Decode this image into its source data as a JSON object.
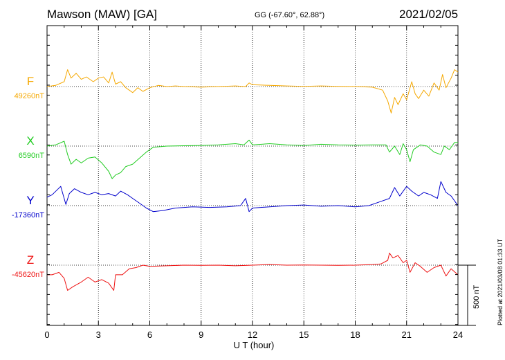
{
  "header": {
    "station": "Mawson (MAW)  [GA]",
    "coords": "GG (-67.60°,  62.88°)",
    "date": "2021/02/05"
  },
  "footer": {
    "xlabel": "U T (hour)",
    "plotted": "Plotted at 2021/03/08 01:33 UT",
    "scale_label": "500 nT"
  },
  "chart_data": {
    "type": "line",
    "x_ticks": [
      0,
      3,
      6,
      9,
      12,
      15,
      18,
      21,
      24
    ],
    "xlim": [
      0,
      24
    ],
    "scale_bar_nT": 500,
    "series": [
      {
        "name": "F",
        "baseline_label": "49260nT",
        "baseline": 49260,
        "color": "#f5a800",
        "points": [
          [
            0,
            49260
          ],
          [
            0.5,
            49270
          ],
          [
            1.0,
            49300
          ],
          [
            1.2,
            49400
          ],
          [
            1.4,
            49330
          ],
          [
            1.7,
            49370
          ],
          [
            2.0,
            49320
          ],
          [
            2.3,
            49340
          ],
          [
            2.7,
            49300
          ],
          [
            3.0,
            49330
          ],
          [
            3.3,
            49340
          ],
          [
            3.6,
            49290
          ],
          [
            3.8,
            49380
          ],
          [
            4.0,
            49280
          ],
          [
            4.3,
            49300
          ],
          [
            4.6,
            49250
          ],
          [
            5.0,
            49210
          ],
          [
            5.3,
            49250
          ],
          [
            5.6,
            49220
          ],
          [
            6.0,
            49250
          ],
          [
            6.5,
            49270
          ],
          [
            7.0,
            49260
          ],
          [
            7.5,
            49265
          ],
          [
            8.0,
            49260
          ],
          [
            9.0,
            49255
          ],
          [
            10.0,
            49260
          ],
          [
            11.0,
            49265
          ],
          [
            11.6,
            49260
          ],
          [
            11.8,
            49290
          ],
          [
            12.0,
            49275
          ],
          [
            13.0,
            49270
          ],
          [
            14.0,
            49265
          ],
          [
            15.0,
            49262
          ],
          [
            16.0,
            49265
          ],
          [
            17.0,
            49262
          ],
          [
            18.0,
            49260
          ],
          [
            19.0,
            49255
          ],
          [
            19.6,
            49230
          ],
          [
            19.9,
            49140
          ],
          [
            20.1,
            49040
          ],
          [
            20.3,
            49170
          ],
          [
            20.5,
            49110
          ],
          [
            20.8,
            49200
          ],
          [
            21.0,
            49150
          ],
          [
            21.3,
            49300
          ],
          [
            21.5,
            49200
          ],
          [
            21.7,
            49160
          ],
          [
            22.0,
            49230
          ],
          [
            22.3,
            49180
          ],
          [
            22.6,
            49290
          ],
          [
            22.9,
            49230
          ],
          [
            23.1,
            49360
          ],
          [
            23.3,
            49250
          ],
          [
            23.6,
            49330
          ],
          [
            23.8,
            49400
          ],
          [
            24.0,
            49380
          ]
        ]
      },
      {
        "name": "X",
        "baseline_label": "6590nT",
        "baseline": 6590,
        "color": "#22cc22",
        "points": [
          [
            0,
            6590
          ],
          [
            0.5,
            6600
          ],
          [
            1.0,
            6630
          ],
          [
            1.2,
            6520
          ],
          [
            1.4,
            6440
          ],
          [
            1.7,
            6480
          ],
          [
            2.0,
            6450
          ],
          [
            2.4,
            6490
          ],
          [
            2.8,
            6500
          ],
          [
            3.2,
            6450
          ],
          [
            3.6,
            6380
          ],
          [
            3.8,
            6320
          ],
          [
            4.0,
            6350
          ],
          [
            4.3,
            6370
          ],
          [
            4.6,
            6420
          ],
          [
            5.0,
            6440
          ],
          [
            5.4,
            6490
          ],
          [
            5.8,
            6540
          ],
          [
            6.2,
            6580
          ],
          [
            6.6,
            6585
          ],
          [
            7.0,
            6590
          ],
          [
            8.0,
            6593
          ],
          [
            9.0,
            6595
          ],
          [
            10.0,
            6600
          ],
          [
            11.0,
            6610
          ],
          [
            11.5,
            6600
          ],
          [
            11.8,
            6640
          ],
          [
            12.0,
            6600
          ],
          [
            13.0,
            6610
          ],
          [
            14.0,
            6600
          ],
          [
            15.0,
            6595
          ],
          [
            16.0,
            6605
          ],
          [
            17.0,
            6600
          ],
          [
            18.0,
            6598
          ],
          [
            19.0,
            6600
          ],
          [
            19.8,
            6600
          ],
          [
            20.0,
            6540
          ],
          [
            20.3,
            6590
          ],
          [
            20.6,
            6520
          ],
          [
            20.8,
            6610
          ],
          [
            21.0,
            6560
          ],
          [
            21.2,
            6460
          ],
          [
            21.4,
            6560
          ],
          [
            21.8,
            6600
          ],
          [
            22.2,
            6590
          ],
          [
            22.6,
            6540
          ],
          [
            23.0,
            6520
          ],
          [
            23.2,
            6590
          ],
          [
            23.5,
            6560
          ],
          [
            23.8,
            6620
          ],
          [
            24.0,
            6620
          ]
        ]
      },
      {
        "name": "Y",
        "baseline_label": "-17360nT",
        "baseline": -17360,
        "color": "#0000cc",
        "points": [
          [
            0,
            -17290
          ],
          [
            0.3,
            -17270
          ],
          [
            0.8,
            -17200
          ],
          [
            1.1,
            -17350
          ],
          [
            1.3,
            -17260
          ],
          [
            1.6,
            -17220
          ],
          [
            2.0,
            -17250
          ],
          [
            2.4,
            -17270
          ],
          [
            2.8,
            -17250
          ],
          [
            3.2,
            -17270
          ],
          [
            3.6,
            -17260
          ],
          [
            4.0,
            -17280
          ],
          [
            4.3,
            -17240
          ],
          [
            4.7,
            -17270
          ],
          [
            5.0,
            -17300
          ],
          [
            5.4,
            -17340
          ],
          [
            5.8,
            -17380
          ],
          [
            6.2,
            -17410
          ],
          [
            6.8,
            -17400
          ],
          [
            7.5,
            -17380
          ],
          [
            8.5,
            -17370
          ],
          [
            9.5,
            -17375
          ],
          [
            10.5,
            -17370
          ],
          [
            11.3,
            -17360
          ],
          [
            11.6,
            -17300
          ],
          [
            11.8,
            -17410
          ],
          [
            12.0,
            -17380
          ],
          [
            13.0,
            -17370
          ],
          [
            14.0,
            -17360
          ],
          [
            15.0,
            -17355
          ],
          [
            16.0,
            -17365
          ],
          [
            17.0,
            -17360
          ],
          [
            18.0,
            -17370
          ],
          [
            18.8,
            -17360
          ],
          [
            19.4,
            -17330
          ],
          [
            20.0,
            -17300
          ],
          [
            20.3,
            -17210
          ],
          [
            20.6,
            -17280
          ],
          [
            21.0,
            -17200
          ],
          [
            21.3,
            -17240
          ],
          [
            21.7,
            -17280
          ],
          [
            22.0,
            -17250
          ],
          [
            22.4,
            -17270
          ],
          [
            22.8,
            -17300
          ],
          [
            23.0,
            -17160
          ],
          [
            23.3,
            -17250
          ],
          [
            23.6,
            -17280
          ],
          [
            24.0,
            -17360
          ]
        ]
      },
      {
        "name": "Z",
        "baseline_label": "-45620nT",
        "baseline": -45620,
        "color": "#ee1111",
        "points": [
          [
            0,
            -45700
          ],
          [
            0.3,
            -45700
          ],
          [
            0.7,
            -45680
          ],
          [
            1.0,
            -45730
          ],
          [
            1.2,
            -45830
          ],
          [
            1.5,
            -45800
          ],
          [
            2.0,
            -45760
          ],
          [
            2.4,
            -45720
          ],
          [
            2.8,
            -45760
          ],
          [
            3.2,
            -45740
          ],
          [
            3.6,
            -45770
          ],
          [
            3.9,
            -45830
          ],
          [
            4.0,
            -45700
          ],
          [
            4.4,
            -45700
          ],
          [
            4.8,
            -45650
          ],
          [
            5.2,
            -45640
          ],
          [
            5.6,
            -45620
          ],
          [
            6.0,
            -45630
          ],
          [
            7.0,
            -45625
          ],
          [
            8.0,
            -45620
          ],
          [
            9.0,
            -45622
          ],
          [
            10.0,
            -45620
          ],
          [
            11.0,
            -45625
          ],
          [
            12.0,
            -45620
          ],
          [
            13.0,
            -45615
          ],
          [
            14.0,
            -45620
          ],
          [
            15.0,
            -45618
          ],
          [
            16.0,
            -45620
          ],
          [
            17.0,
            -45622
          ],
          [
            18.0,
            -45620
          ],
          [
            19.0,
            -45615
          ],
          [
            19.5,
            -45610
          ],
          [
            19.9,
            -45580
          ],
          [
            20.0,
            -45520
          ],
          [
            20.2,
            -45560
          ],
          [
            20.5,
            -45540
          ],
          [
            20.8,
            -45600
          ],
          [
            21.0,
            -45580
          ],
          [
            21.2,
            -45680
          ],
          [
            21.5,
            -45600
          ],
          [
            21.8,
            -45630
          ],
          [
            22.2,
            -45680
          ],
          [
            22.6,
            -45640
          ],
          [
            23.0,
            -45620
          ],
          [
            23.3,
            -45710
          ],
          [
            23.6,
            -45650
          ],
          [
            24.0,
            -45700
          ]
        ]
      }
    ]
  }
}
